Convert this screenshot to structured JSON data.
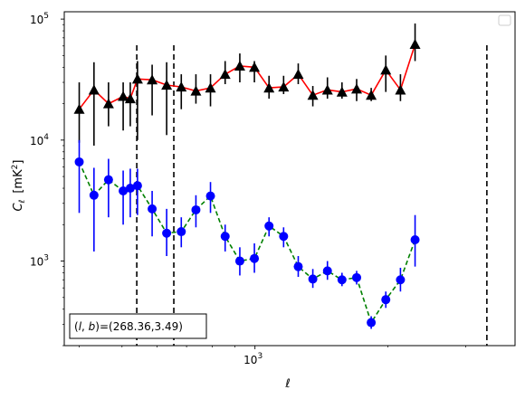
{
  "chart_data": {
    "type": "line",
    "xscale": "log",
    "yscale": "log",
    "xlim": [
      370,
      3880
    ],
    "ylim": [
      200,
      115000
    ],
    "xlabel": "ℓ",
    "ylabel": "C_ℓ [mK²]",
    "ylabel_main": "C",
    "ylabel_sub": "ℓ",
    "ylabel_unit": "[mK",
    "ylabel_unit_sup": "2",
    "ylabel_unit_end": "]",
    "x_tick_labels": [
      {
        "value": 1000,
        "base": "10",
        "exp": "3"
      }
    ],
    "y_tick_labels": [
      {
        "value": 1000,
        "base": "10",
        "exp": "3"
      },
      {
        "value": 10000,
        "base": "10",
        "exp": "4"
      },
      {
        "value": 100000,
        "base": "10",
        "exp": "5"
      }
    ],
    "grid": false,
    "legend": "top-right (empty)",
    "vlines": [
      540,
      655,
      3350
    ],
    "annotation": "(l, b)=(268.36,3.49)",
    "annotation_parts": {
      "open": "(",
      "l": "l",
      "comma": ", ",
      "b": "b",
      "close": ")",
      "value": "=(268.36,3.49)"
    },
    "series": [
      {
        "color": "#ff0000",
        "linestyle": "solid",
        "marker": "triangle",
        "marker_color": "#000000",
        "errorbar_color": "#000000",
        "points": [
          {
            "x": 400,
            "y": 18000,
            "lo": 9500,
            "hi": 30000
          },
          {
            "x": 432,
            "y": 26000,
            "lo": 9000,
            "hi": 44000
          },
          {
            "x": 466,
            "y": 20000,
            "lo": 13000,
            "hi": 30000
          },
          {
            "x": 503,
            "y": 23000,
            "lo": 12000,
            "hi": 30000
          },
          {
            "x": 522,
            "y": 22000,
            "lo": 13000,
            "hi": 30000
          },
          {
            "x": 542,
            "y": 32000,
            "lo": 10000,
            "hi": 45000
          },
          {
            "x": 585,
            "y": 31500,
            "lo": 16000,
            "hi": 42000
          },
          {
            "x": 631,
            "y": 28500,
            "lo": 11000,
            "hi": 44000
          },
          {
            "x": 681,
            "y": 27500,
            "lo": 18000,
            "hi": 35000
          },
          {
            "x": 735,
            "y": 25500,
            "lo": 20000,
            "hi": 35000
          },
          {
            "x": 793,
            "y": 27000,
            "lo": 19000,
            "hi": 35000
          },
          {
            "x": 856,
            "y": 35000,
            "lo": 29000,
            "hi": 45000
          },
          {
            "x": 924,
            "y": 41000,
            "lo": 30000,
            "hi": 52000
          },
          {
            "x": 997,
            "y": 40000,
            "lo": 30000,
            "hi": 45000
          },
          {
            "x": 1076,
            "y": 27000,
            "lo": 22000,
            "hi": 34000
          },
          {
            "x": 1161,
            "y": 27500,
            "lo": 24000,
            "hi": 34000
          },
          {
            "x": 1253,
            "y": 35000,
            "lo": 29000,
            "hi": 43000
          },
          {
            "x": 1352,
            "y": 23500,
            "lo": 19000,
            "hi": 28000
          },
          {
            "x": 1459,
            "y": 26000,
            "lo": 22000,
            "hi": 33000
          },
          {
            "x": 1574,
            "y": 25000,
            "lo": 22000,
            "hi": 30000
          },
          {
            "x": 1699,
            "y": 26500,
            "lo": 21000,
            "hi": 32000
          },
          {
            "x": 1833,
            "y": 23500,
            "lo": 21000,
            "hi": 27000
          },
          {
            "x": 1978,
            "y": 38000,
            "lo": 25000,
            "hi": 50000
          },
          {
            "x": 2135,
            "y": 26000,
            "lo": 21000,
            "hi": 35000
          },
          {
            "x": 2304,
            "y": 62000,
            "lo": 45000,
            "hi": 92000
          }
        ]
      },
      {
        "color": "#008000",
        "linestyle": "dashed",
        "marker": "circle",
        "marker_color": "#0000ff",
        "errorbar_color": "#0000ff",
        "points": [
          {
            "x": 400,
            "y": 6600,
            "lo": 2500,
            "hi": 10000
          },
          {
            "x": 432,
            "y": 3500,
            "lo": 1200,
            "hi": 5900
          },
          {
            "x": 466,
            "y": 4700,
            "lo": 2300,
            "hi": 7000
          },
          {
            "x": 503,
            "y": 3800,
            "lo": 2000,
            "hi": 5600
          },
          {
            "x": 522,
            "y": 4000,
            "lo": 2300,
            "hi": 5800
          },
          {
            "x": 542,
            "y": 4200,
            "lo": 2400,
            "hi": 5800
          },
          {
            "x": 585,
            "y": 2700,
            "lo": 1600,
            "hi": 3800
          },
          {
            "x": 631,
            "y": 1700,
            "lo": 1100,
            "hi": 2700
          },
          {
            "x": 681,
            "y": 1750,
            "lo": 1300,
            "hi": 2300
          },
          {
            "x": 735,
            "y": 2650,
            "lo": 1900,
            "hi": 3500
          },
          {
            "x": 793,
            "y": 3450,
            "lo": 2500,
            "hi": 4500
          },
          {
            "x": 856,
            "y": 1600,
            "lo": 1200,
            "hi": 2000
          },
          {
            "x": 924,
            "y": 1000,
            "lo": 760,
            "hi": 1300
          },
          {
            "x": 997,
            "y": 1050,
            "lo": 800,
            "hi": 1400
          },
          {
            "x": 1076,
            "y": 1950,
            "lo": 1600,
            "hi": 2300
          },
          {
            "x": 1161,
            "y": 1600,
            "lo": 1300,
            "hi": 1900
          },
          {
            "x": 1253,
            "y": 900,
            "lo": 740,
            "hi": 1100
          },
          {
            "x": 1352,
            "y": 710,
            "lo": 600,
            "hi": 860
          },
          {
            "x": 1459,
            "y": 830,
            "lo": 700,
            "hi": 1000
          },
          {
            "x": 1574,
            "y": 700,
            "lo": 620,
            "hi": 800
          },
          {
            "x": 1699,
            "y": 730,
            "lo": 640,
            "hi": 830
          },
          {
            "x": 1833,
            "y": 310,
            "lo": 275,
            "hi": 350
          },
          {
            "x": 1978,
            "y": 480,
            "lo": 410,
            "hi": 560
          },
          {
            "x": 2135,
            "y": 700,
            "lo": 560,
            "hi": 880
          },
          {
            "x": 2304,
            "y": 1500,
            "lo": 900,
            "hi": 2400
          }
        ]
      }
    ]
  }
}
